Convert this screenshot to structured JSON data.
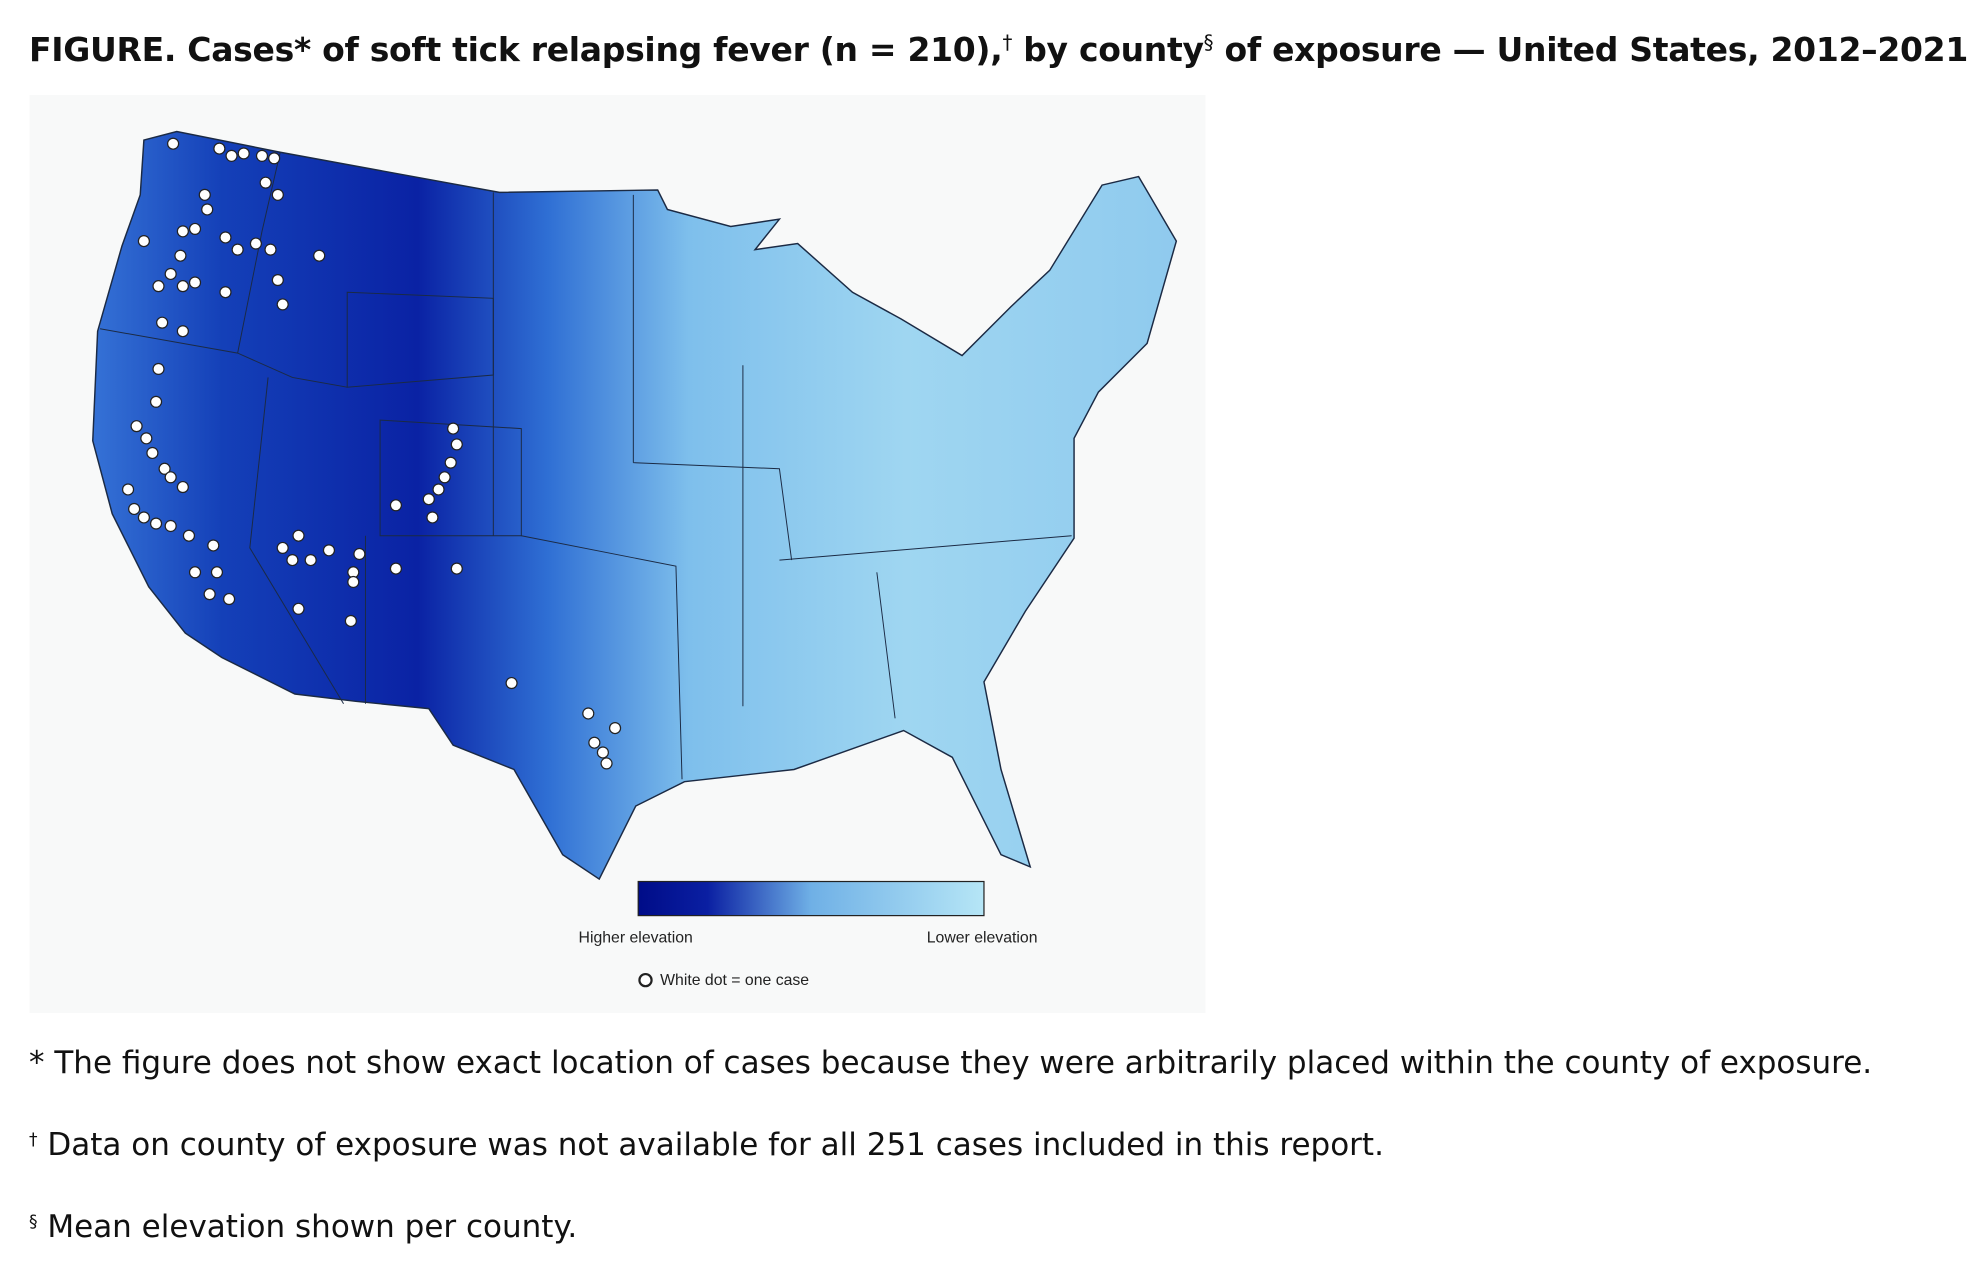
{
  "header": {
    "label": "FIGURE.",
    "title_a": "Cases* of soft tick relapsing fever (n = 210),",
    "mark_a": "†",
    "title_b": " by county",
    "mark_b": "§",
    "title_c": " of exposure — United States, 2012–2021"
  },
  "map": {
    "legend": {
      "high": "Higher elevation",
      "low": "Lower elevation",
      "dot": "White dot = one case"
    }
  },
  "footnotes": [
    {
      "marker": "*",
      "text": " The figure does not show exact location of cases because they were arbitrarily placed within the county of exposure."
    },
    {
      "marker": "†",
      "text": " Data on county of exposure was not available for all 251 cases included in this report."
    },
    {
      "marker": "§",
      "text": " Mean elevation shown per county."
    }
  ]
}
